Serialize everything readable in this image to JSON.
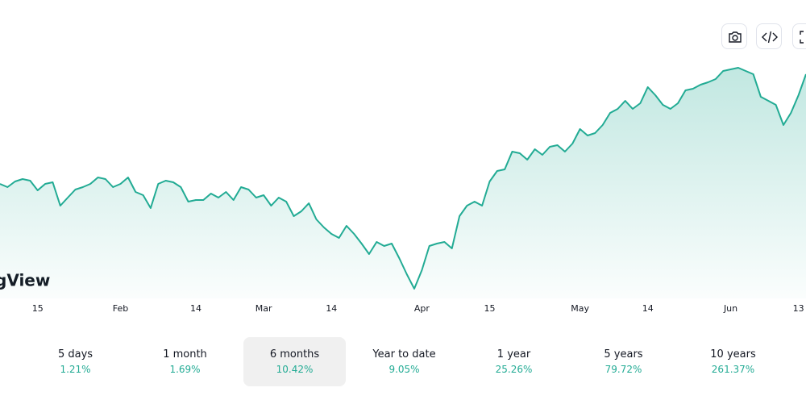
{
  "chart_data": {
    "type": "area",
    "logo": "gView",
    "color": "#22ab94",
    "categories": [
      null,
      null,
      null,
      null,
      null,
      "15",
      null,
      null,
      null,
      null,
      null,
      null,
      null,
      null,
      null,
      null,
      "Feb",
      null,
      null,
      null,
      null,
      null,
      null,
      null,
      null,
      null,
      "14",
      null,
      null,
      null,
      null,
      null,
      null,
      null,
      null,
      "Mar",
      null,
      null,
      null,
      null,
      null,
      null,
      null,
      null,
      "14",
      null,
      null,
      null,
      null,
      null,
      null,
      null,
      null,
      null,
      null,
      null,
      "Apr",
      null,
      null,
      null,
      null,
      null,
      null,
      null,
      null,
      "15",
      null,
      null,
      null,
      null,
      null,
      null,
      null,
      null,
      null,
      null,
      null,
      "May",
      null,
      null,
      null,
      null,
      null,
      null,
      null,
      null,
      "14",
      null,
      null,
      null,
      null,
      null,
      null,
      null,
      null,
      null,
      null,
      "Jun",
      null,
      null,
      null,
      null,
      null,
      null,
      null,
      null,
      "13",
      null
    ],
    "values": [
      142,
      138,
      145,
      148,
      146,
      134,
      142,
      144,
      115,
      125,
      135,
      138,
      142,
      150,
      148,
      138,
      142,
      150,
      132,
      128,
      112,
      142,
      146,
      144,
      138,
      120,
      122,
      122,
      130,
      125,
      132,
      122,
      138,
      135,
      125,
      128,
      115,
      125,
      120,
      102,
      108,
      118,
      98,
      88,
      80,
      75,
      90,
      80,
      68,
      55,
      70,
      65,
      68,
      50,
      30,
      12,
      35,
      65,
      68,
      70,
      62,
      102,
      115,
      120,
      115,
      145,
      158,
      160,
      182,
      180,
      172,
      185,
      178,
      188,
      190,
      182,
      192,
      210,
      202,
      205,
      215,
      230,
      235,
      245,
      235,
      242,
      262,
      252,
      240,
      235,
      242,
      258,
      260,
      265,
      268,
      272,
      282,
      284,
      286,
      282,
      278,
      250,
      245,
      240,
      215,
      230,
      252,
      278
    ],
    "ylim": [
      0,
      300
    ]
  },
  "periods": {
    "selected": 2,
    "items": [
      {
        "label": "5 days",
        "change": "1.21%"
      },
      {
        "label": "1 month",
        "change": "1.69%"
      },
      {
        "label": "6 months",
        "change": "10.42%"
      },
      {
        "label": "Year to date",
        "change": "9.05%"
      },
      {
        "label": "1 year",
        "change": "25.26%"
      },
      {
        "label": "5 years",
        "change": "79.72%"
      },
      {
        "label": "10 years",
        "change": "261.37%"
      }
    ]
  }
}
